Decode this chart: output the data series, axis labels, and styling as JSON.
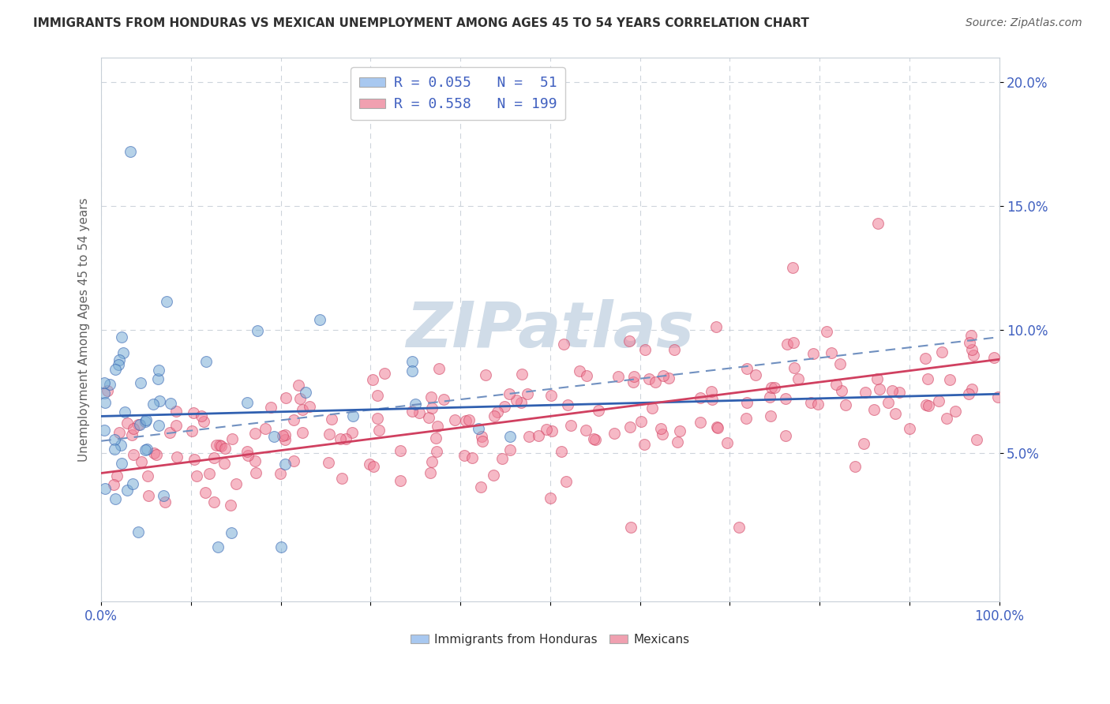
{
  "title": "IMMIGRANTS FROM HONDURAS VS MEXICAN UNEMPLOYMENT AMONG AGES 45 TO 54 YEARS CORRELATION CHART",
  "source": "Source: ZipAtlas.com",
  "ylabel": "Unemployment Among Ages 45 to 54 years",
  "xlim": [
    0,
    1
  ],
  "ylim": [
    -0.01,
    0.21
  ],
  "yticks": [
    0.05,
    0.1,
    0.15,
    0.2
  ],
  "ytick_labels": [
    "5.0%",
    "10.0%",
    "15.0%",
    "20.0%"
  ],
  "xtick_labels": [
    "0.0%",
    "",
    "",
    "",
    "",
    "",
    "",
    "",
    "",
    "",
    "100.0%"
  ],
  "legend1_label": "R = 0.055   N =  51",
  "legend2_label": "R = 0.558   N = 199",
  "legend1_color": "#a8c8f0",
  "legend2_color": "#f0a0b0",
  "scatter_blue_color": "#7aaed6",
  "scatter_pink_color": "#f08098",
  "trend_blue_color": "#3060b0",
  "trend_pink_color": "#d04060",
  "trend_dash_color": "#7090c0",
  "watermark_color": "#d0dce8",
  "title_color": "#303030",
  "axis_color": "#606060",
  "label_color": "#4060c0",
  "grid_color": "#c8d0d8",
  "background_color": "#ffffff",
  "R_blue": 0.055,
  "N_blue": 51,
  "R_pink": 0.558,
  "N_pink": 199
}
